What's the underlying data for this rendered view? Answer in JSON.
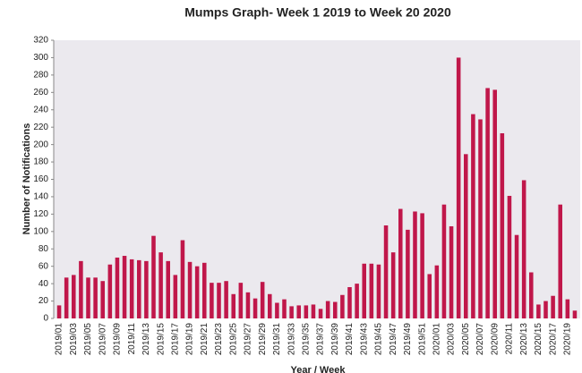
{
  "chart_data": {
    "type": "bar",
    "title": "Mumps Graph- Week 1  2019 to Week 20  2020",
    "x_label": "Year / Week",
    "y_label": "Number of Notifications",
    "categories": [
      "2019/01",
      null,
      "2019/03",
      null,
      "2019/05",
      null,
      "2019/07",
      null,
      "2019/09",
      null,
      "2019/11",
      null,
      "2019/13",
      null,
      "2019/15",
      null,
      "2019/17",
      null,
      "2019/19",
      null,
      "2019/21",
      null,
      "2019/23",
      null,
      "2019/25",
      null,
      "2019/27",
      null,
      "2019/29",
      null,
      "2019/31",
      null,
      "2019/33",
      null,
      "2019/35",
      null,
      "2019/37",
      null,
      "2019/39",
      null,
      "2019/41",
      null,
      "2019/43",
      null,
      "2019/45",
      null,
      "2019/47",
      null,
      "2019/49",
      null,
      "2019/51",
      null,
      "2020/01",
      null,
      "2020/03",
      null,
      "2020/05",
      null,
      "2020/07",
      null,
      "2020/09",
      null,
      "2020/11",
      null,
      "2020/13",
      null,
      "2020/15",
      null,
      "2020/17",
      null,
      "2020/19",
      null
    ],
    "values": [
      15,
      47,
      50,
      66,
      47,
      47,
      43,
      62,
      70,
      72,
      68,
      67,
      66,
      95,
      76,
      66,
      50,
      90,
      65,
      60,
      64,
      41,
      41,
      43,
      28,
      41,
      30,
      23,
      42,
      28,
      18,
      22,
      14,
      15,
      15,
      16,
      11,
      20,
      19,
      27,
      36,
      40,
      63,
      63,
      62,
      107,
      76,
      126,
      102,
      123,
      121,
      51,
      61,
      131,
      106,
      300,
      189,
      235,
      229,
      265,
      263,
      213,
      141,
      96,
      159,
      53,
      16,
      20,
      26,
      131,
      22,
      9
    ],
    "color": "#c0174a",
    "ylim": [
      0,
      320
    ],
    "yticks": [
      0,
      20,
      40,
      60,
      80,
      100,
      120,
      140,
      160,
      180,
      200,
      220,
      240,
      260,
      280,
      300,
      320
    ],
    "grid": false
  }
}
